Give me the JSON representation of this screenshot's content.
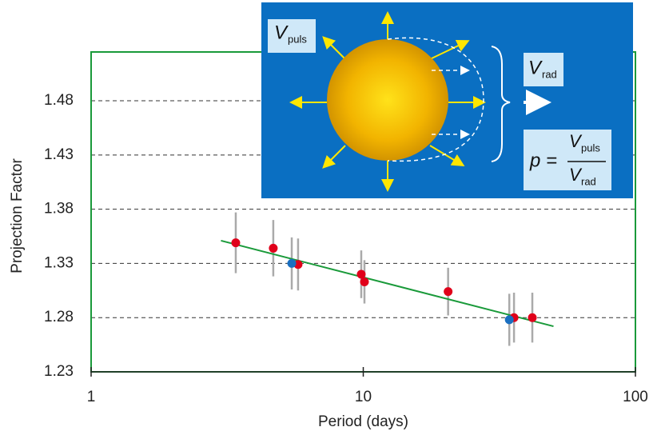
{
  "chart_data": {
    "type": "scatter",
    "xlabel": "Period (days)",
    "ylabel": "Projection Factor",
    "xscale": "log",
    "xlim": [
      1,
      100
    ],
    "xticks": [
      1,
      10,
      100
    ],
    "ylim": [
      1.23,
      1.525
    ],
    "yticks": [
      1.23,
      1.28,
      1.33,
      1.38,
      1.43,
      1.48
    ],
    "grid": true,
    "frame_color": "#1a9a3a",
    "series": [
      {
        "color": "#e0001a",
        "x": [
          3.4,
          4.67,
          5.76,
          9.83,
          10.1,
          20.5,
          35.8,
          41.8
        ],
        "values": [
          1.349,
          1.344,
          1.329,
          1.32,
          1.313,
          1.304,
          1.28,
          1.28
        ],
        "errors": [
          0.028,
          0.026,
          0.024,
          0.022,
          0.02,
          0.022,
          0.023,
          0.023
        ]
      },
      {
        "color": "#1a6fc0",
        "x": [
          5.46,
          34.4
        ],
        "values": [
          1.33,
          1.278
        ],
        "errors": [
          0.024,
          0.024
        ]
      }
    ],
    "fit": {
      "color": "#1a9a3a",
      "x": [
        3,
        50
      ],
      "values": [
        1.351,
        1.272
      ]
    },
    "inset": {
      "pulsation": {
        "symbol": "V",
        "subscript": "puls"
      },
      "radial": {
        "symbol": "V",
        "subscript": "rad"
      },
      "formula": {
        "lhs": "p =",
        "numerator": {
          "symbol": "V",
          "subscript": "puls"
        },
        "denominator": {
          "symbol": "V",
          "subscript": "rad"
        }
      }
    }
  }
}
